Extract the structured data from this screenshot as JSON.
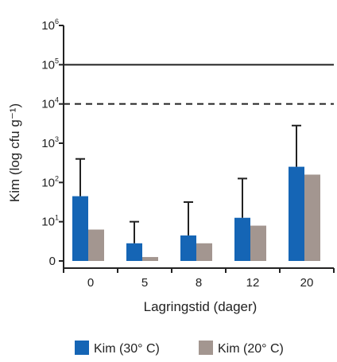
{
  "chart_data": {
    "type": "bar",
    "categories": [
      "0",
      "5",
      "8",
      "12",
      "20"
    ],
    "xlabel": "Lagringstid (dager)",
    "ylabel": "Kim (log cfu g⁻¹)",
    "yscale": "log",
    "ylim": [
      0,
      6
    ],
    "y_ticks": [
      {
        "base": "0",
        "exp": ""
      },
      {
        "base": "10",
        "exp": "1"
      },
      {
        "base": "10",
        "exp": "2"
      },
      {
        "base": "10",
        "exp": "3"
      },
      {
        "base": "10",
        "exp": "4"
      },
      {
        "base": "10",
        "exp": "5"
      },
      {
        "base": "10",
        "exp": "6"
      }
    ],
    "series": [
      {
        "name": "Kim (30° C)",
        "color": "#1565b5",
        "log_values": [
          1.65,
          0.45,
          0.65,
          1.1,
          2.4
        ],
        "error_upper": [
          2.6,
          1.0,
          1.5,
          2.1,
          3.45
        ]
      },
      {
        "name": "Kim (20° C)",
        "color": "#a39690",
        "log_values": [
          0.8,
          0.1,
          0.45,
          0.9,
          2.2
        ]
      }
    ],
    "reference_lines": [
      {
        "log_value": 5,
        "style": "solid"
      },
      {
        "log_value": 4,
        "style": "dashed"
      }
    ],
    "legend_position": "bottom"
  }
}
